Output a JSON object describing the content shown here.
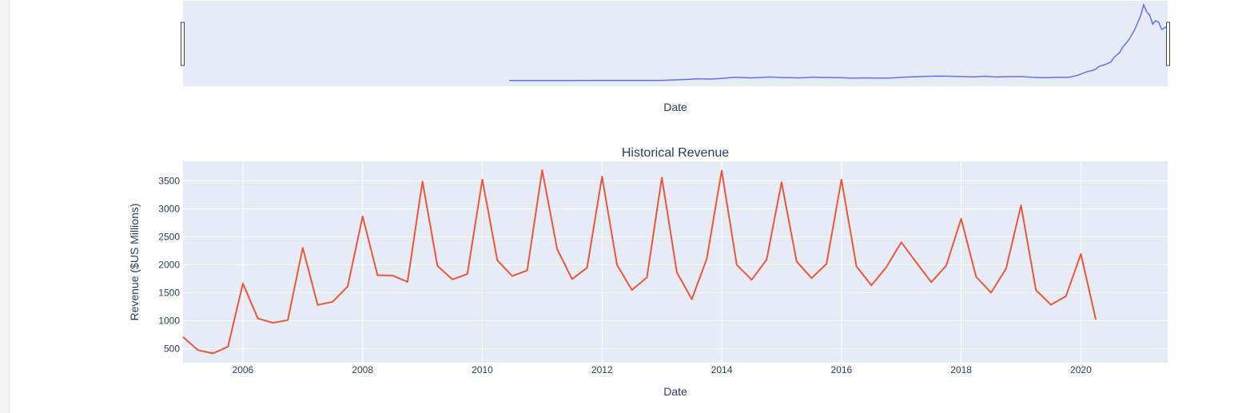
{
  "chart_data": [
    {
      "type": "line",
      "role": "range-slider",
      "xlabel": "Date",
      "line_color": "#636efa",
      "x_range": [
        2005.0,
        2021.45
      ],
      "series": [
        {
          "x": [
            2010.45,
            2010.8,
            2011.0,
            2011.5,
            2012.0,
            2012.5,
            2013.0,
            2013.4,
            2013.6,
            2013.8,
            2014.0,
            2014.2,
            2014.5,
            2014.8,
            2015.0,
            2015.3,
            2015.5,
            2015.8,
            2016.0,
            2016.2,
            2016.4,
            2016.6,
            2016.8,
            2017.0,
            2017.3,
            2017.6,
            2017.8,
            2018.0,
            2018.2,
            2018.4,
            2018.6,
            2018.8,
            2019.0,
            2019.2,
            2019.4,
            2019.6,
            2019.8,
            2019.95,
            2020.1,
            2020.2,
            2020.25,
            2020.3,
            2020.4,
            2020.5,
            2020.55,
            2020.65,
            2020.7,
            2020.75,
            2020.8,
            2020.85,
            2020.9,
            2020.95,
            2021.0,
            2021.05,
            2021.1,
            2021.15,
            2021.2,
            2021.25,
            2021.3,
            2021.35,
            2021.4,
            2021.45
          ],
          "y": [
            1.0,
            1.0,
            1.0,
            1.0,
            1.1,
            1.1,
            1.1,
            1.6,
            2.0,
            1.8,
            2.2,
            2.8,
            2.5,
            3.0,
            2.7,
            2.5,
            2.9,
            2.7,
            2.6,
            2.3,
            2.5,
            2.4,
            2.4,
            2.8,
            3.2,
            3.5,
            3.4,
            3.3,
            3.1,
            3.4,
            3.0,
            3.2,
            3.2,
            2.8,
            2.6,
            2.8,
            2.8,
            4.0,
            6.0,
            6.8,
            7.5,
            9.0,
            10.0,
            11.5,
            14.0,
            17.0,
            20.0,
            22.0,
            24.0,
            27.0,
            30.0,
            34.0,
            38.0,
            44.0,
            40.0,
            38.0,
            33.0,
            35.0,
            34.0,
            30.0,
            31.0,
            32.0
          ]
        }
      ]
    },
    {
      "type": "line",
      "title": "Historical Revenue",
      "xlabel": "Date",
      "ylabel": "Revenue ($US Millions)",
      "line_color": "#ef553b",
      "x_range": [
        2005.0,
        2021.45
      ],
      "ylim": [
        250,
        3850
      ],
      "x_ticks": [
        2006,
        2008,
        2010,
        2012,
        2014,
        2016,
        2018,
        2020
      ],
      "y_ticks": [
        500,
        1000,
        1500,
        2000,
        2500,
        3000,
        3500
      ],
      "grid": true,
      "series": [
        {
          "x": [
            2005.0,
            2005.25,
            2005.5,
            2005.75,
            2006.0,
            2006.25,
            2006.5,
            2006.75,
            2007.0,
            2007.25,
            2007.5,
            2007.75,
            2008.0,
            2008.25,
            2008.5,
            2008.75,
            2009.0,
            2009.25,
            2009.5,
            2009.75,
            2010.0,
            2010.25,
            2010.5,
            2010.75,
            2011.0,
            2011.25,
            2011.5,
            2011.75,
            2012.0,
            2012.25,
            2012.5,
            2012.75,
            2013.0,
            2013.25,
            2013.5,
            2013.75,
            2014.0,
            2014.25,
            2014.5,
            2014.75,
            2015.0,
            2015.25,
            2015.5,
            2015.75,
            2016.0,
            2016.25,
            2016.5,
            2016.75,
            2017.0,
            2017.25,
            2017.5,
            2017.75,
            2018.0,
            2018.25,
            2018.5,
            2018.75,
            2019.0,
            2019.25,
            2019.5,
            2019.75,
            2020.0,
            2020.25
          ],
          "y": [
            709,
            475,
            415,
            534,
            1667,
            1040,
            963,
            1012,
            2304,
            1283,
            1338,
            1611,
            2866,
            1814,
            1808,
            1696,
            3492,
            1981,
            1739,
            1835,
            3524,
            2083,
            1799,
            1899,
            3693,
            2281,
            1744,
            1947,
            3579,
            1999,
            1550,
            1773,
            3562,
            1865,
            1384,
            2107,
            3684,
            2002,
            1731,
            2093,
            3476,
            2061,
            1762,
            2016,
            3525,
            1972,
            1632,
            1959,
            2403,
            2045,
            1688,
            1986,
            2825,
            1786,
            1501,
            1935,
            3063,
            1548,
            1286,
            1439,
            2194,
            1021
          ]
        }
      ]
    }
  ]
}
